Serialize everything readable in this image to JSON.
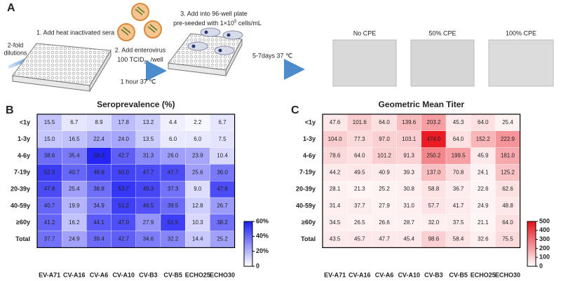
{
  "diagram": {
    "panel_label": "A",
    "step1": "1. Add heat inactivated sera",
    "dilution_line1": "2-fold",
    "dilution_line2": "dilutions",
    "step2": "2. Add enterovirus",
    "dose_main": "100 TCID",
    "dose_sub": "50",
    "dose_unit": " /well",
    "incubation1": "1 hour 37 ℃",
    "step3": "3. Add into 96-well plate",
    "seed_main": "pre-seeded with 1×10",
    "seed_sup": "5",
    "seed_unit": " cells/mL",
    "incubation2": "5-7days 37 ℃",
    "images": [
      "No CPE",
      "50% CPE",
      "100% CPE"
    ]
  },
  "chart_data": [
    {
      "type": "heatmap",
      "panel_label": "B",
      "title": "Seroprevalence (%)",
      "categories": [
        "EV-A71",
        "CV-A16",
        "CV-A6",
        "CV-A10",
        "CV-B3",
        "CV-B5",
        "ECHO25",
        "ECHO30"
      ],
      "rows": [
        "<1y",
        "1-3y",
        "4-6y",
        "7-19y",
        "20-39y",
        "40-59y",
        "≥60y",
        "Total"
      ],
      "values": [
        [
          15.5,
          6.7,
          8.9,
          17.8,
          13.2,
          4.4,
          2.2,
          6.7
        ],
        [
          15.0,
          16.5,
          22.4,
          24.0,
          13.5,
          6.0,
          6.0,
          7.5
        ],
        [
          38.6,
          35.4,
          58.3,
          42.7,
          31.3,
          26.0,
          23.9,
          10.4
        ],
        [
          52.3,
          40.7,
          48.8,
          50.0,
          47.7,
          47.7,
          25.6,
          36.0
        ],
        [
          47.8,
          25.4,
          38.8,
          53.7,
          49.3,
          37.3,
          9.0,
          47.8
        ],
        [
          40.7,
          19.9,
          34.9,
          51.2,
          46.5,
          39.5,
          12.8,
          26.7
        ],
        [
          41.2,
          16.2,
          44.1,
          47.0,
          27.9,
          51.5,
          10.3,
          38.2
        ],
        [
          37.7,
          24.9,
          39.4,
          42.7,
          34.6,
          32.2,
          14.4,
          25.2
        ]
      ],
      "value_labels": [
        [
          "15.5",
          "6.7",
          "8.9",
          "17.8",
          "13.2",
          "4.4",
          "2.2",
          "6.7"
        ],
        [
          "15.0",
          "16.5",
          "22.4",
          "24.0",
          "13.5",
          "6.0",
          "6.0",
          "7.5"
        ],
        [
          "38.6",
          "35.4",
          "58.3",
          "42.7",
          "31.3",
          "26.0",
          "23.9",
          "10.4"
        ],
        [
          "52.3",
          "40.7",
          "48.8",
          "50.0",
          "47.7",
          "47.7",
          "25.6",
          "36.0"
        ],
        [
          "47.8",
          "25.4",
          "38.8",
          "53.7",
          "49.3",
          "37.3",
          "9.0",
          "47.8"
        ],
        [
          "40.7",
          "19.9",
          "34.9",
          "51.2",
          "46.5",
          "39.5",
          "12.8",
          "26.7"
        ],
        [
          "41.2",
          "16.2",
          "44.1",
          "47.0",
          "27.9",
          "51.5",
          "10.3",
          "38.2"
        ],
        [
          "37.7",
          "24.9",
          "39.4",
          "42.7",
          "34.6",
          "32.2",
          "14.4",
          "25.2"
        ]
      ],
      "colors": [
        "#ffffff",
        "#1e1ef5"
      ],
      "clim": [
        0,
        60
      ],
      "cticks": [
        0,
        {
          "value": 20,
          "label": "20%"
        },
        {
          "value": 40,
          "label": "40%"
        },
        {
          "value": 60,
          "label": "60%"
        }
      ]
    },
    {
      "type": "heatmap",
      "panel_label": "C",
      "title": "Geometric Mean Titer",
      "categories": [
        "EV-A71",
        "CV-A16",
        "CV-A6",
        "CV-A10",
        "CV-B3",
        "CV-B5",
        "ECHO25",
        "ECHO30"
      ],
      "rows": [
        "<1y",
        "1-3y",
        "4-6y",
        "7-19y",
        "20-39y",
        "40-59y",
        "≥60y",
        "Total"
      ],
      "values": [
        [
          47.6,
          101.6,
          64.0,
          139.6,
          203.2,
          45.3,
          64.0,
          25.4
        ],
        [
          104.0,
          77.3,
          97.0,
          103.1,
          474.0,
          64.0,
          152.2,
          222.9
        ],
        [
          78.6,
          64.0,
          101.2,
          91.3,
          250.2,
          199.5,
          45.9,
          181.0
        ],
        [
          44.2,
          49.5,
          40.9,
          39.3,
          137.0,
          70.8,
          24.1,
          125.2
        ],
        [
          28.1,
          21.3,
          25.2,
          30.8,
          58.8,
          36.7,
          22.6,
          62.6
        ],
        [
          31.4,
          37.7,
          27.9,
          31.0,
          57.7,
          41.7,
          24.9,
          48.8
        ],
        [
          34.5,
          26.5,
          26.6,
          28.7,
          32.0,
          37.5,
          21.1,
          64.0
        ],
        [
          43.5,
          45.7,
          47.7,
          45.4,
          98.6,
          58.4,
          32.6,
          75.5
        ]
      ],
      "value_labels": [
        [
          "47.6",
          "101.6",
          "64.0",
          "139.6",
          "203.2",
          "45.3",
          "64.0",
          "25.4"
        ],
        [
          "104.0",
          "77.3",
          "97.0",
          "103.1",
          "474.0",
          "64.0",
          "152.2",
          "222.9"
        ],
        [
          "78.6",
          "64.0",
          "101.2",
          "91.3",
          "250.2",
          "199.5",
          "45.9",
          "181.0"
        ],
        [
          "44.2",
          "49.5",
          "40.9",
          "39.3",
          "137.0",
          "70.8",
          "24.1",
          "125.2"
        ],
        [
          "28.1",
          "21.3",
          "25.2",
          "30.8",
          "58.8",
          "36.7",
          "22.6",
          "62.6"
        ],
        [
          "31.4",
          "37.7",
          "27.9",
          "31.0",
          "57.7",
          "41.7",
          "24.9",
          "48.8"
        ],
        [
          "34.5",
          "26.5",
          "26.6",
          "28.7",
          "32.0",
          "37.5",
          "21.1",
          "64.0"
        ],
        [
          "43.5",
          "45.7",
          "47.7",
          "45.4",
          "98.6",
          "58.4",
          "32.6",
          "75.5"
        ]
      ],
      "colors": [
        "#ffffff",
        "#e8101a"
      ],
      "clim": [
        0,
        500
      ],
      "cticks": [
        0,
        100,
        200,
        300,
        400,
        500
      ]
    }
  ]
}
